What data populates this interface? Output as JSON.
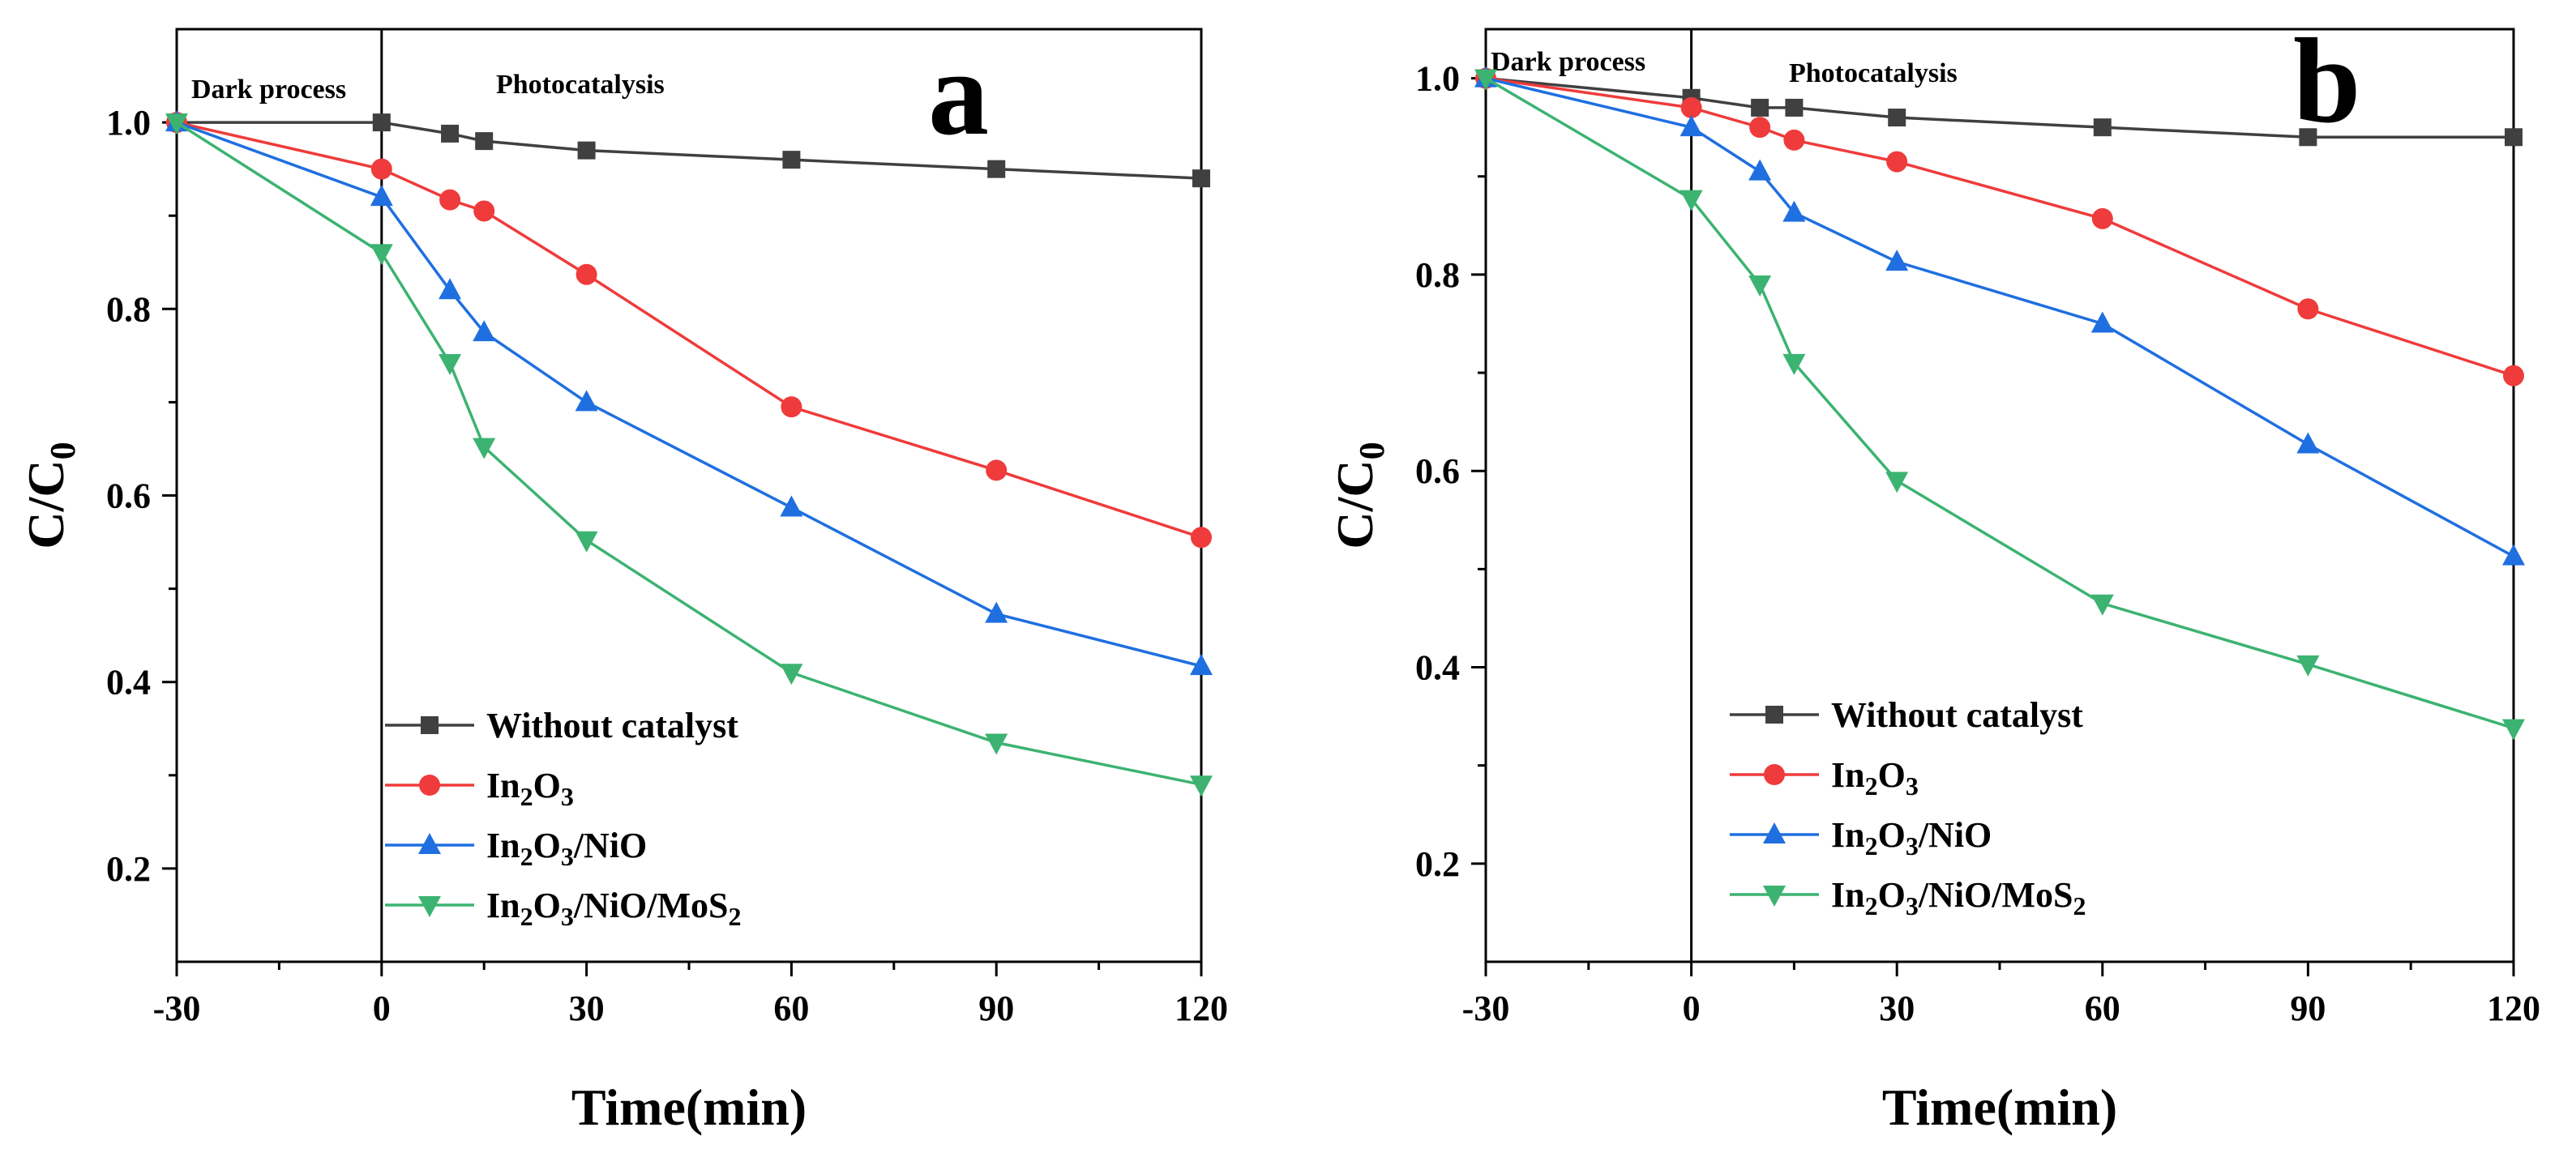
{
  "chart_data": [
    {
      "type": "line",
      "panel_label": "a",
      "xlabel": "Time(min)",
      "ylabel": "C/C0",
      "ylabel_parts": {
        "main": "C/C",
        "sub": "0"
      },
      "xlim": [
        -30,
        120
      ],
      "ylim": [
        0.1,
        1.1
      ],
      "xticks": [
        "-30",
        "0",
        "30",
        "60",
        "90",
        "120"
      ],
      "yticks": [
        "0.2",
        "0.4",
        "0.6",
        "0.8",
        "1.0"
      ],
      "annotations": {
        "dark": "Dark process",
        "photo": "Photocatalysis"
      },
      "divider_x": 0,
      "legend_position": "lower-left",
      "x": [
        -30,
        0,
        10,
        15,
        30,
        60,
        90,
        120
      ],
      "series": [
        {
          "name": "Without catalyst",
          "name_parts": [
            [
              "Without catalyst",
              ""
            ]
          ],
          "marker": "square",
          "color": "#404040",
          "values": [
            1.0,
            1.0,
            0.988,
            0.98,
            0.97,
            0.96,
            0.95,
            0.94
          ]
        },
        {
          "name": "In2O3",
          "name_parts": [
            [
              "In",
              ""
            ],
            [
              "2",
              "sub"
            ],
            [
              "O",
              ""
            ],
            [
              "3",
              "sub"
            ]
          ],
          "marker": "circle",
          "color": "#ef3b3b",
          "values": [
            1.0,
            0.95,
            0.917,
            0.905,
            0.837,
            0.695,
            0.627,
            0.555
          ]
        },
        {
          "name": "In2O3/NiO",
          "name_parts": [
            [
              "In",
              ""
            ],
            [
              "2",
              "sub"
            ],
            [
              "O",
              ""
            ],
            [
              "3",
              "sub"
            ],
            [
              "/NiO",
              ""
            ]
          ],
          "marker": "triangle-up",
          "color": "#1f6fe0",
          "values": [
            1.0,
            0.92,
            0.82,
            0.775,
            0.7,
            0.587,
            0.473,
            0.417
          ]
        },
        {
          "name": "In2O3/NiO/MoS2",
          "name_parts": [
            [
              "In",
              ""
            ],
            [
              "2",
              "sub"
            ],
            [
              "O",
              ""
            ],
            [
              "3",
              "sub"
            ],
            [
              "/NiO/MoS",
              ""
            ],
            [
              "2",
              "sub"
            ]
          ],
          "marker": "triangle-down",
          "color": "#3cb371",
          "values": [
            1.0,
            0.86,
            0.742,
            0.652,
            0.552,
            0.41,
            0.335,
            0.29
          ]
        }
      ]
    },
    {
      "type": "line",
      "panel_label": "b",
      "xlabel": "Time(min)",
      "ylabel": "C/C0",
      "ylabel_parts": {
        "main": "C/C",
        "sub": "0"
      },
      "xlim": [
        -30,
        120
      ],
      "ylim": [
        0.1,
        1.05
      ],
      "xticks": [
        "-30",
        "0",
        "30",
        "60",
        "90",
        "120"
      ],
      "yticks": [
        "0.2",
        "0.4",
        "0.6",
        "0.8",
        "1.0"
      ],
      "annotations": {
        "dark": "Dark process",
        "photo": "Photocatalysis"
      },
      "divider_x": 0,
      "legend_position": "lower-left",
      "x": [
        -30,
        0,
        10,
        15,
        30,
        60,
        90,
        120
      ],
      "series": [
        {
          "name": "Without catalyst",
          "name_parts": [
            [
              "Without catalyst",
              ""
            ]
          ],
          "marker": "square",
          "color": "#404040",
          "values": [
            1.0,
            0.98,
            0.97,
            0.97,
            0.96,
            0.95,
            0.94,
            0.94
          ]
        },
        {
          "name": "In2O3",
          "name_parts": [
            [
              "In",
              ""
            ],
            [
              "2",
              "sub"
            ],
            [
              "O",
              ""
            ],
            [
              "3",
              "sub"
            ]
          ],
          "marker": "circle",
          "color": "#ef3b3b",
          "values": [
            1.0,
            0.97,
            0.95,
            0.937,
            0.915,
            0.857,
            0.765,
            0.697
          ]
        },
        {
          "name": "In2O3/NiO",
          "name_parts": [
            [
              "In",
              ""
            ],
            [
              "2",
              "sub"
            ],
            [
              "O",
              ""
            ],
            [
              "3",
              "sub"
            ],
            [
              "/NiO",
              ""
            ]
          ],
          "marker": "triangle-up",
          "color": "#1f6fe0",
          "values": [
            1.0,
            0.95,
            0.905,
            0.863,
            0.813,
            0.75,
            0.627,
            0.513
          ]
        },
        {
          "name": "In2O3/NiO/MoS2",
          "name_parts": [
            [
              "In",
              ""
            ],
            [
              "2",
              "sub"
            ],
            [
              "O",
              ""
            ],
            [
              "3",
              "sub"
            ],
            [
              "/NiO/MoS",
              ""
            ],
            [
              "2",
              "sub"
            ]
          ],
          "marker": "triangle-down",
          "color": "#3cb371",
          "values": [
            1.0,
            0.877,
            0.79,
            0.71,
            0.59,
            0.465,
            0.403,
            0.338
          ]
        }
      ]
    }
  ]
}
